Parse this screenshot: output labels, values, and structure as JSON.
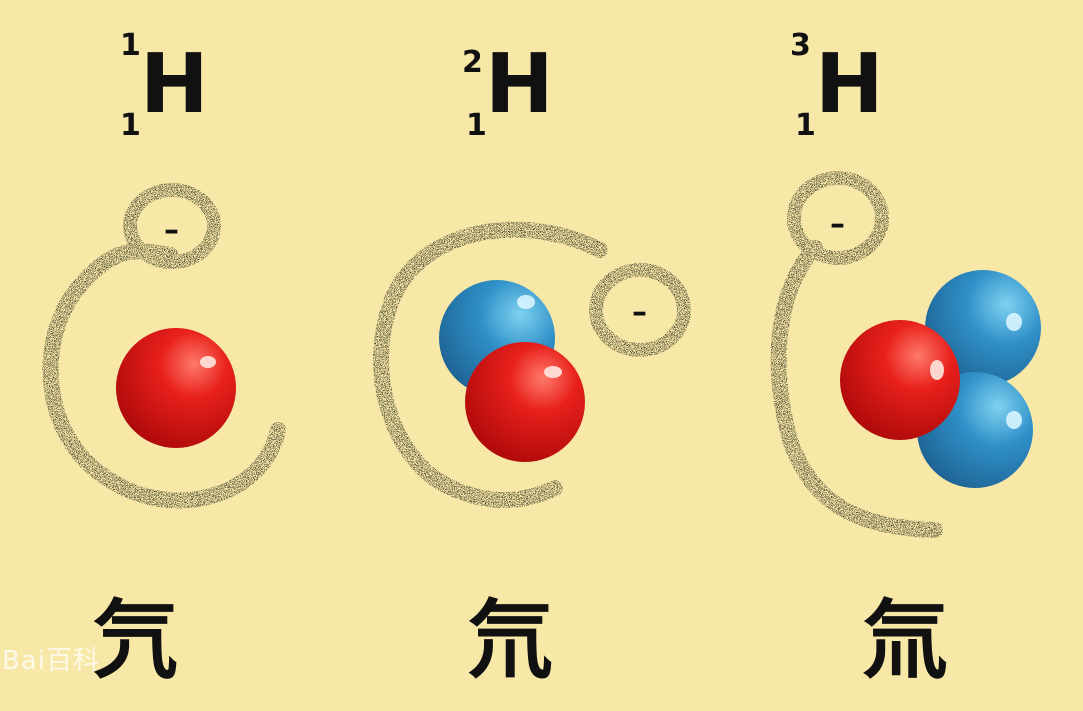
{
  "isotopes": [
    {
      "mass_number": "1",
      "atomic_number": "1",
      "symbol": "H",
      "name": "氕",
      "protons": 1,
      "neutrons": 0,
      "electron_sign": "–"
    },
    {
      "mass_number": "2",
      "atomic_number": "1",
      "symbol": "H",
      "name": "氘",
      "protons": 1,
      "neutrons": 1,
      "electron_sign": "–"
    },
    {
      "mass_number": "3",
      "atomic_number": "1",
      "symbol": "H",
      "name": "氚",
      "protons": 1,
      "neutrons": 2,
      "electron_sign": "–"
    }
  ],
  "colors": {
    "background": "#f8e8a8",
    "proton": "#e01818",
    "neutron": "#2d8cc4",
    "orbit": "#2a2a1a"
  },
  "watermark": "Bai百科"
}
